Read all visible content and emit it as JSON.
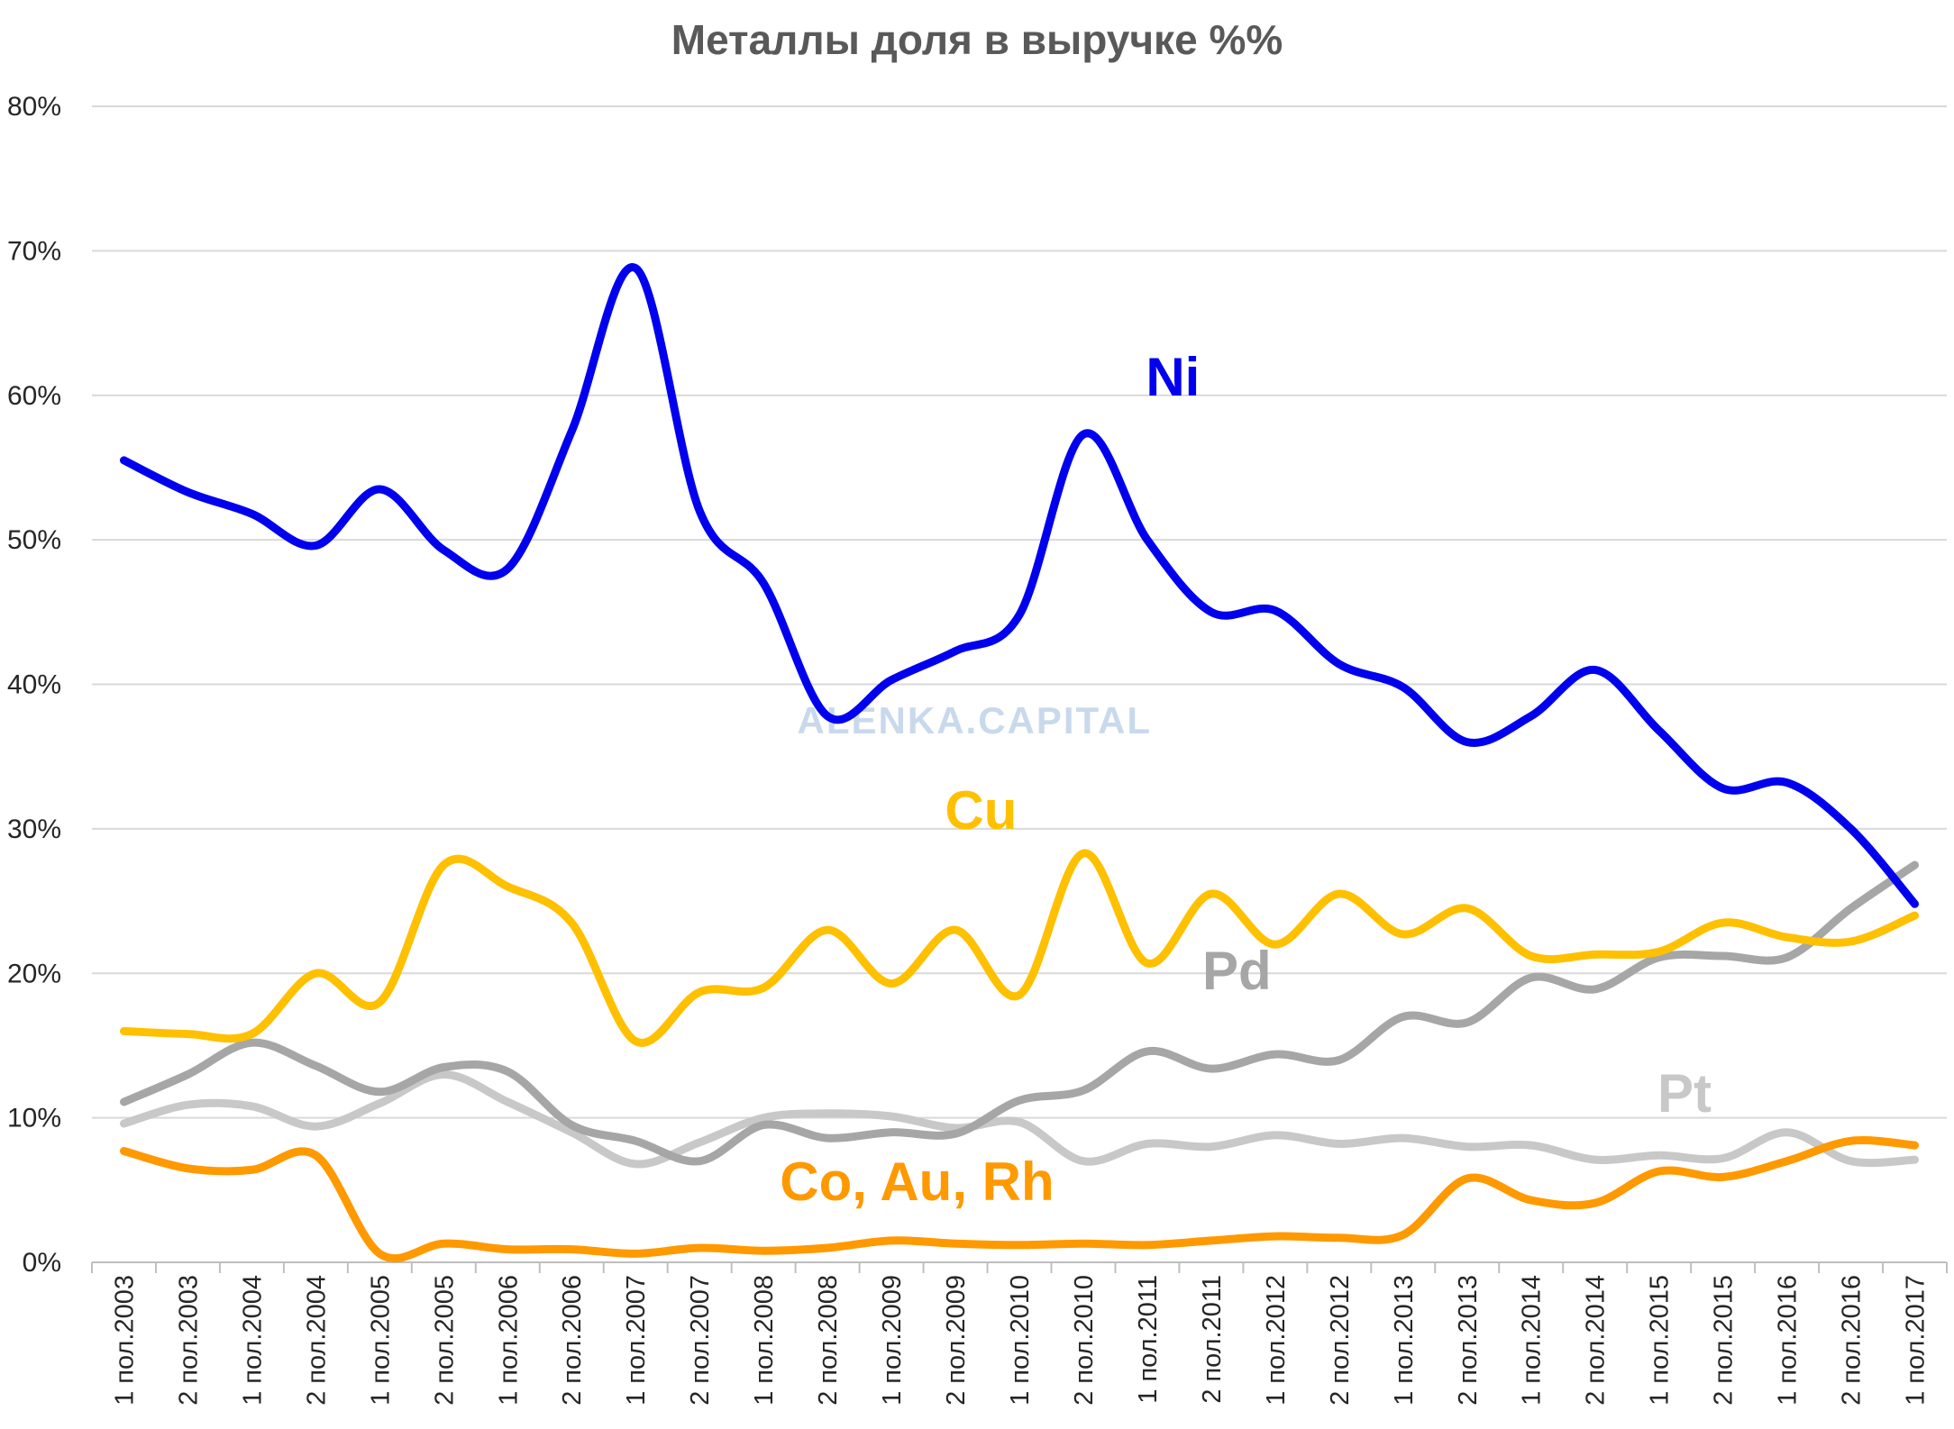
{
  "chart_data": {
    "type": "line",
    "title": "Металлы доля в выручке %%",
    "watermark": "ALENKA.CAPITAL",
    "xlabel": "",
    "ylabel": "",
    "ylim": [
      0,
      80
    ],
    "ytick_labels": [
      "0%",
      "10%",
      "20%",
      "30%",
      "40%",
      "50%",
      "60%",
      "70%",
      "80%"
    ],
    "grid": true,
    "legend": "inline labels",
    "categories": [
      "1 пол.2003",
      "2 пол.2003",
      "1 пол.2004",
      "2 пол.2004",
      "1 пол.2005",
      "2 пол.2005",
      "1 пол.2006",
      "2 пол.2006",
      "1 пол.2007",
      "2 пол.2007",
      "1 пол.2008",
      "2 пол.2008",
      "1 пол.2009",
      "2 пол.2009",
      "1 пол.2010",
      "2 пол.2010",
      "1 пол.2011",
      "2 пол.2011",
      "1 пол.2012",
      "2 пол.2012",
      "1 пол.2013",
      "2 пол.2013",
      "1 пол.2014",
      "2 пол.2014",
      "1 пол.2015",
      "2 пол.2015",
      "1 пол.2016",
      "2 пол.2016",
      "1 пол.2017"
    ],
    "series": [
      {
        "name": "Ni",
        "color": "#0000ee",
        "values": [
          55.5,
          53.3,
          51.8,
          49.6,
          53.5,
          49.3,
          48.0,
          57.5,
          68.8,
          52.0,
          47.0,
          37.8,
          40.3,
          42.3,
          44.8,
          57.3,
          50.0,
          45.0,
          45.1,
          41.4,
          39.8,
          36.0,
          37.8,
          41.0,
          36.8,
          32.8,
          33.2,
          30.0,
          24.8
        ],
        "label_anchor": 16
      },
      {
        "name": "Cu",
        "color": "#ffc000",
        "values": [
          16.0,
          15.8,
          15.8,
          20.0,
          18.0,
          27.5,
          26.0,
          23.5,
          15.3,
          18.7,
          19.0,
          23.0,
          19.3,
          23.0,
          18.5,
          28.3,
          20.7,
          25.5,
          22.0,
          25.5,
          22.7,
          24.5,
          21.2,
          21.3,
          21.5,
          23.5,
          22.5,
          22.2,
          24.0
        ],
        "label_anchor": 13
      },
      {
        "name": "Pd",
        "color": "#a6a6a6",
        "values": [
          11.1,
          13.0,
          15.2,
          13.6,
          11.8,
          13.5,
          13.2,
          9.5,
          8.4,
          7.0,
          9.5,
          8.6,
          9.0,
          8.9,
          11.2,
          11.9,
          14.6,
          13.4,
          14.4,
          14.0,
          17.0,
          16.6,
          19.7,
          18.9,
          21.1,
          21.2,
          21.1,
          24.5,
          27.5
        ],
        "label_anchor": 17
      },
      {
        "name": "Pt",
        "color": "#c8c8c8",
        "values": [
          9.6,
          10.9,
          10.8,
          9.4,
          11.0,
          13.0,
          11.1,
          9.0,
          6.8,
          8.3,
          10.0,
          10.3,
          10.1,
          9.3,
          9.7,
          7.0,
          8.2,
          8.0,
          8.8,
          8.2,
          8.6,
          8.0,
          8.1,
          7.1,
          7.4,
          7.2,
          9.0,
          7.0,
          7.1
        ],
        "label_anchor": 24
      },
      {
        "name": "Co, Au, Rh",
        "color": "#ff9900",
        "values": [
          7.7,
          6.5,
          6.4,
          7.4,
          0.6,
          1.3,
          0.9,
          0.9,
          0.6,
          1.0,
          0.8,
          1.0,
          1.5,
          1.3,
          1.2,
          1.3,
          1.2,
          1.5,
          1.8,
          1.7,
          1.9,
          5.8,
          4.3,
          4.1,
          6.3,
          5.9,
          7.0,
          8.4,
          8.1
        ],
        "label_anchor": 12
      }
    ]
  }
}
